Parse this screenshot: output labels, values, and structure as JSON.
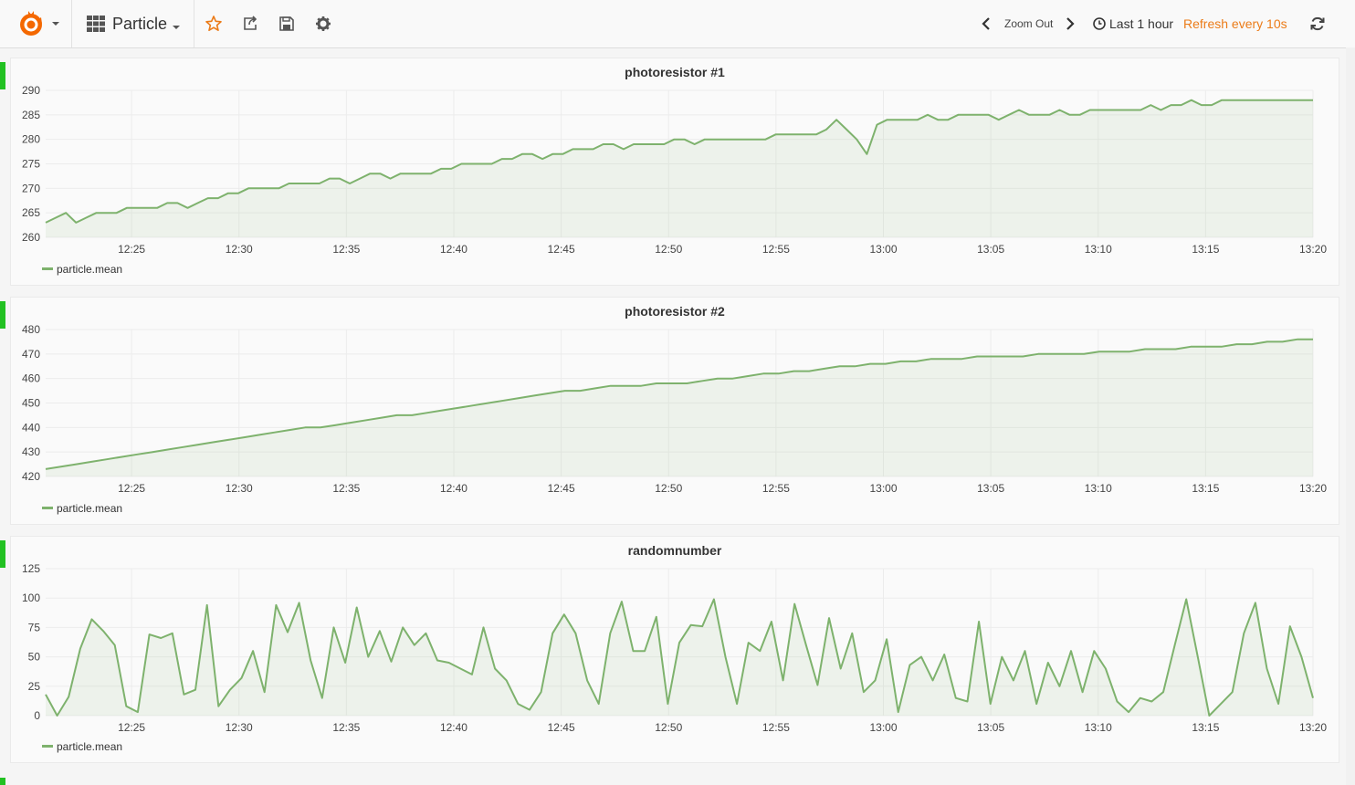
{
  "topbar": {
    "dashboard_title": "Particle",
    "zoom_out_label": "Zoom Out",
    "time_range": "Last 1 hour",
    "refresh": "Refresh every 10s",
    "icons": [
      "grafana-logo-icon",
      "dashboard-grid-icon",
      "star-icon",
      "share-icon",
      "save-icon",
      "settings-icon",
      "chevron-left-icon",
      "chevron-right-icon",
      "clock-icon",
      "refresh-icon"
    ]
  },
  "colors": {
    "series": "#7eb26d",
    "refresh_accent": "#eb7b18",
    "row_marker": "#22c122"
  },
  "chart_data": [
    {
      "type": "line",
      "title": "photoresistor #1",
      "x_ticks": [
        "12:25",
        "12:30",
        "12:35",
        "12:40",
        "12:45",
        "12:50",
        "12:55",
        "13:00",
        "13:05",
        "13:10",
        "13:15",
        "13:20"
      ],
      "y_ticks": [
        260,
        265,
        270,
        275,
        280,
        285,
        290
      ],
      "ylim": [
        260,
        290
      ],
      "x_start": "12:21",
      "x_end": "13:20",
      "series": [
        {
          "name": "particle.mean",
          "values": [
            263,
            264,
            265,
            263,
            264,
            265,
            265,
            265,
            266,
            266,
            266,
            266,
            267,
            267,
            266,
            267,
            268,
            268,
            269,
            269,
            270,
            270,
            270,
            270,
            271,
            271,
            271,
            271,
            272,
            272,
            271,
            272,
            273,
            273,
            272,
            273,
            273,
            273,
            273,
            274,
            274,
            275,
            275,
            275,
            275,
            276,
            276,
            277,
            277,
            276,
            277,
            277,
            278,
            278,
            278,
            279,
            279,
            278,
            279,
            279,
            279,
            279,
            280,
            280,
            279,
            280,
            280,
            280,
            280,
            280,
            280,
            280,
            281,
            281,
            281,
            281,
            281,
            282,
            284,
            282,
            280,
            277,
            283,
            284,
            284,
            284,
            284,
            285,
            284,
            284,
            285,
            285,
            285,
            285,
            284,
            285,
            286,
            285,
            285,
            285,
            286,
            285,
            285,
            286,
            286,
            286,
            286,
            286,
            286,
            287,
            286,
            287,
            287,
            288,
            287,
            287,
            288,
            288,
            288,
            288,
            288,
            288,
            288,
            288,
            288,
            288
          ]
        }
      ],
      "legend": [
        "particle.mean"
      ]
    },
    {
      "type": "line",
      "title": "photoresistor #2",
      "x_ticks": [
        "12:25",
        "12:30",
        "12:35",
        "12:40",
        "12:45",
        "12:50",
        "12:55",
        "13:00",
        "13:05",
        "13:10",
        "13:15",
        "13:20"
      ],
      "y_ticks": [
        420,
        430,
        440,
        450,
        460,
        470,
        480
      ],
      "ylim": [
        420,
        480
      ],
      "x_start": "12:21",
      "x_end": "13:20",
      "series": [
        {
          "name": "particle.mean",
          "values": [
            423,
            424,
            425,
            426,
            427,
            428,
            429,
            430,
            431,
            432,
            433,
            434,
            435,
            436,
            437,
            438,
            439,
            440,
            440,
            441,
            442,
            443,
            444,
            445,
            445,
            446,
            447,
            448,
            449,
            450,
            451,
            452,
            453,
            454,
            455,
            455,
            456,
            457,
            457,
            457,
            458,
            458,
            458,
            459,
            460,
            460,
            461,
            462,
            462,
            463,
            463,
            464,
            465,
            465,
            466,
            466,
            467,
            467,
            468,
            468,
            468,
            469,
            469,
            469,
            469,
            470,
            470,
            470,
            470,
            471,
            471,
            471,
            472,
            472,
            472,
            473,
            473,
            473,
            474,
            474,
            475,
            475,
            476,
            476
          ]
        }
      ],
      "legend": [
        "particle.mean"
      ]
    },
    {
      "type": "line",
      "title": "randomnumber",
      "x_ticks": [
        "12:25",
        "12:30",
        "12:35",
        "12:40",
        "12:45",
        "12:50",
        "12:55",
        "13:00",
        "13:05",
        "13:10",
        "13:15",
        "13:20"
      ],
      "y_ticks": [
        0,
        25,
        50,
        75,
        100,
        125
      ],
      "ylim": [
        0,
        125
      ],
      "x_start": "12:21",
      "x_end": "13:20",
      "series": [
        {
          "name": "particle.mean",
          "values": [
            18,
            0,
            16,
            57,
            82,
            72,
            60,
            8,
            3,
            69,
            66,
            70,
            18,
            22,
            94,
            8,
            22,
            32,
            55,
            20,
            94,
            71,
            96,
            47,
            15,
            75,
            45,
            92,
            50,
            72,
            46,
            75,
            60,
            70,
            47,
            45,
            40,
            35,
            75,
            40,
            30,
            10,
            5,
            20,
            70,
            86,
            70,
            30,
            10,
            70,
            97,
            55,
            55,
            84,
            10,
            62,
            77,
            76,
            99,
            50,
            10,
            62,
            55,
            80,
            30,
            95,
            60,
            26,
            83,
            40,
            70,
            20,
            30,
            65,
            3,
            43,
            50,
            30,
            52,
            15,
            12,
            80,
            10,
            50,
            30,
            55,
            10,
            45,
            25,
            55,
            20,
            55,
            40,
            12,
            3,
            15,
            12,
            20,
            60,
            99,
            50,
            0,
            10,
            20,
            70,
            96,
            40,
            10,
            76,
            50,
            15
          ]
        }
      ],
      "legend": [
        "particle.mean"
      ]
    }
  ]
}
